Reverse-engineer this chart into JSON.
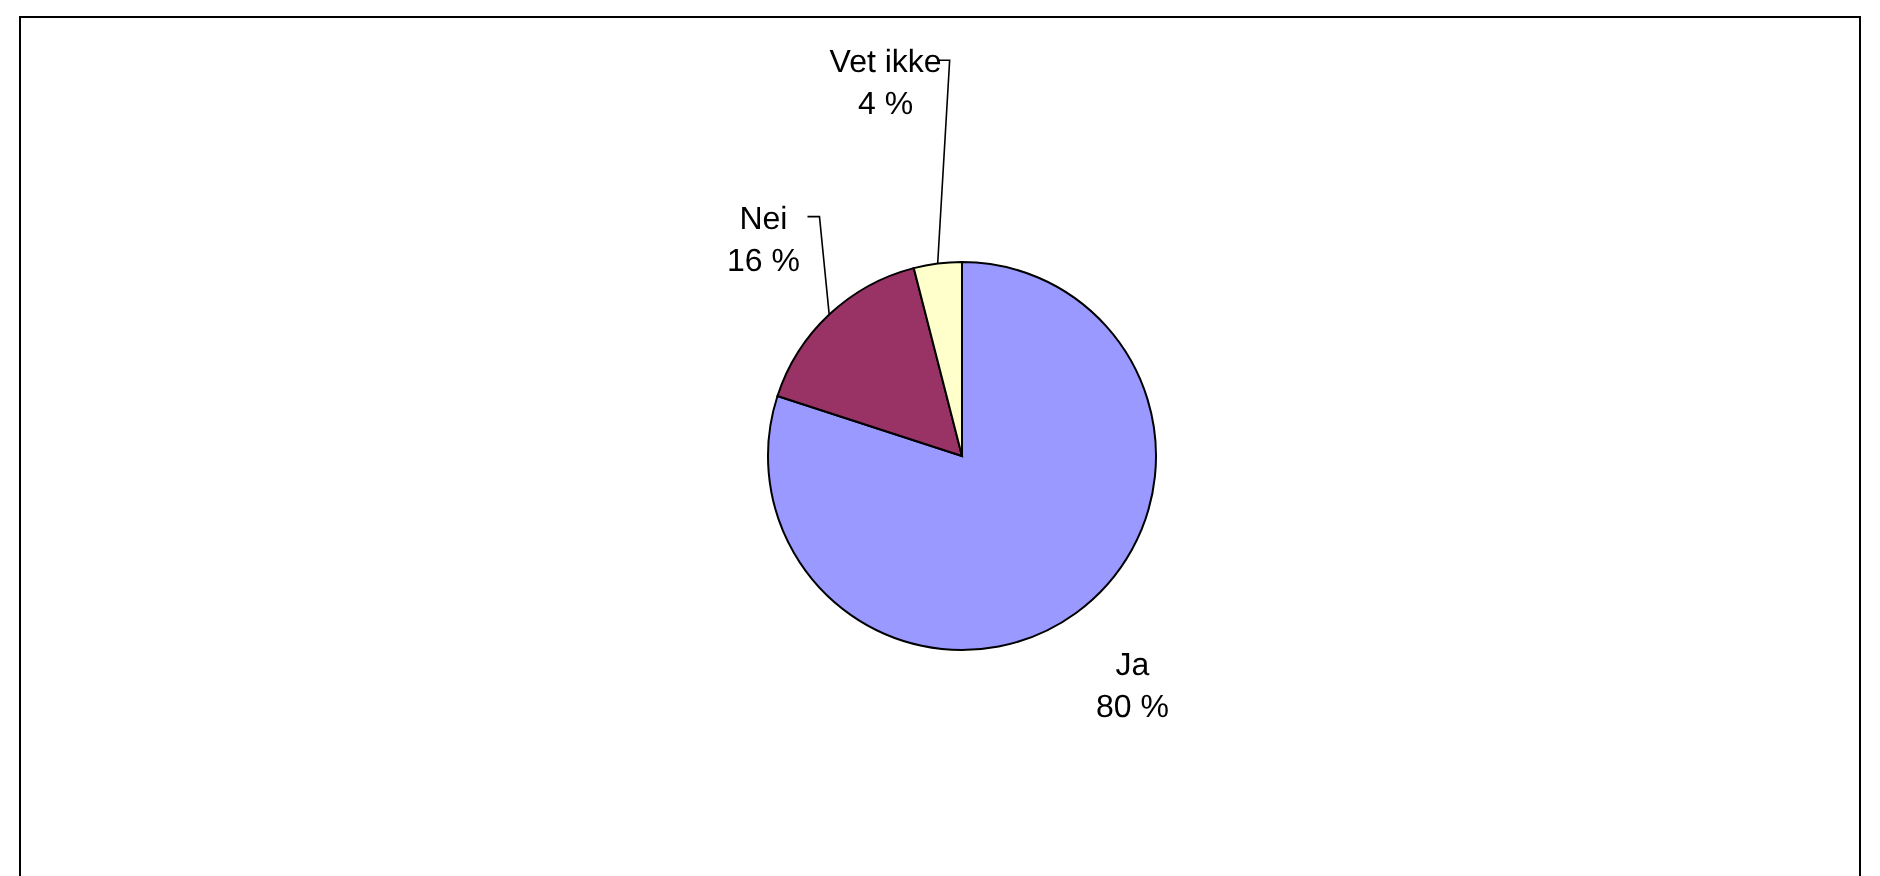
{
  "chart_data": {
    "type": "pie",
    "categories": [
      "Ja",
      "Nei",
      "Vet ikke"
    ],
    "values": [
      80,
      16,
      4
    ],
    "colors": [
      "#9999ff",
      "#993366",
      "#ffffcc"
    ],
    "value_labels": [
      "80 %",
      "16 %",
      "4 %"
    ]
  }
}
